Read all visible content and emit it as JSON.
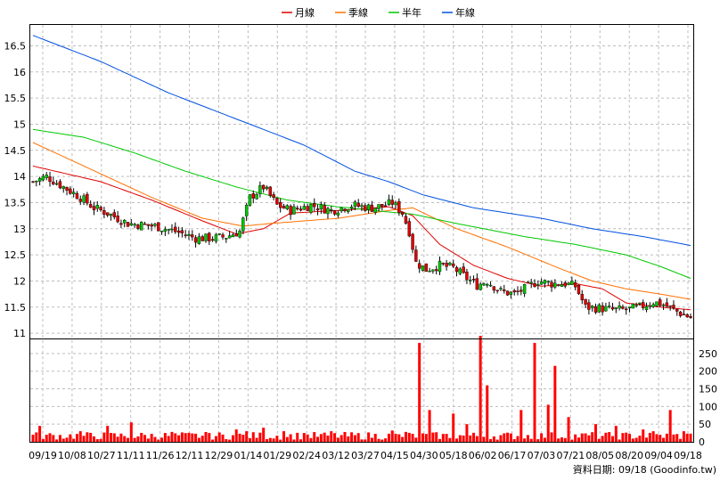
{
  "chart_data": {
    "type": "line",
    "legend": {
      "placement": "top",
      "entries": [
        {
          "name": "月線",
          "color": "#e00000"
        },
        {
          "name": "季線",
          "color": "#ff7000"
        },
        {
          "name": "半年",
          "color": "#00c800"
        },
        {
          "name": "年線",
          "color": "#0050e0"
        }
      ]
    },
    "price_axis": {
      "ticks": [
        "11",
        "11.5",
        "12",
        "12.5",
        "13",
        "13.5",
        "14",
        "14.5",
        "15",
        "15.5",
        "16",
        "16.5"
      ],
      "ylim": [
        10.9,
        16.9
      ]
    },
    "volume_axis": {
      "ticks": [
        "0",
        "50",
        "100",
        "150",
        "200",
        "250"
      ],
      "ylim": [
        0,
        290
      ]
    },
    "x_ticks": [
      "09/19",
      "10/08",
      "10/27",
      "11/11",
      "11/26",
      "12/11",
      "12/29",
      "01/14",
      "01/29",
      "02/24",
      "03/12",
      "03/27",
      "04/15",
      "04/30",
      "05/18",
      "06/02",
      "06/17",
      "07/03",
      "07/21",
      "08/05",
      "08/20",
      "09/04",
      "09/18"
    ],
    "grid": true,
    "candle_up_color": "#00c800",
    "candle_down_color": "#e00000",
    "volume_color": "#ff0000",
    "close_anchors": [
      [
        0,
        13.9
      ],
      [
        4,
        14.0
      ],
      [
        9,
        13.8
      ],
      [
        14,
        13.6
      ],
      [
        18,
        13.4
      ],
      [
        22,
        13.3
      ],
      [
        28,
        13.1
      ],
      [
        36,
        13.05
      ],
      [
        42,
        12.95
      ],
      [
        48,
        12.82
      ],
      [
        53,
        12.82
      ],
      [
        57,
        12.85
      ],
      [
        61,
        12.95
      ],
      [
        64,
        13.6
      ],
      [
        68,
        13.8
      ],
      [
        72,
        13.45
      ],
      [
        76,
        13.35
      ],
      [
        82,
        13.45
      ],
      [
        88,
        13.35
      ],
      [
        94,
        13.45
      ],
      [
        100,
        13.4
      ],
      [
        104,
        13.45
      ],
      [
        106,
        13.5
      ],
      [
        109,
        13.3
      ],
      [
        111,
        12.95
      ],
      [
        113,
        12.35
      ],
      [
        116,
        12.22
      ],
      [
        120,
        12.3
      ],
      [
        124,
        12.25
      ],
      [
        128,
        12.05
      ],
      [
        131,
        11.92
      ],
      [
        134,
        12.0
      ],
      [
        138,
        11.8
      ],
      [
        142,
        11.75
      ],
      [
        145,
        11.85
      ],
      [
        149,
        12.0
      ],
      [
        153,
        11.95
      ],
      [
        157,
        11.95
      ],
      [
        160,
        11.9
      ],
      [
        163,
        11.5
      ],
      [
        167,
        11.48
      ],
      [
        171,
        11.45
      ],
      [
        175,
        11.45
      ],
      [
        179,
        11.5
      ],
      [
        183,
        11.6
      ],
      [
        186,
        11.55
      ],
      [
        189,
        11.45
      ],
      [
        192,
        11.35
      ],
      [
        194,
        11.3
      ]
    ],
    "ma_anchors": {
      "月線": [
        [
          0,
          14.2
        ],
        [
          20,
          13.9
        ],
        [
          35,
          13.55
        ],
        [
          50,
          13.15
        ],
        [
          60,
          12.9
        ],
        [
          68,
          13.0
        ],
        [
          76,
          13.3
        ],
        [
          90,
          13.35
        ],
        [
          105,
          13.42
        ],
        [
          112,
          13.25
        ],
        [
          120,
          12.7
        ],
        [
          130,
          12.3
        ],
        [
          140,
          12.05
        ],
        [
          150,
          11.9
        ],
        [
          160,
          11.95
        ],
        [
          168,
          11.85
        ],
        [
          175,
          11.58
        ],
        [
          185,
          11.5
        ],
        [
          194,
          11.45
        ]
      ],
      "季線": [
        [
          0,
          14.65
        ],
        [
          20,
          14.05
        ],
        [
          35,
          13.6
        ],
        [
          50,
          13.2
        ],
        [
          62,
          13.05
        ],
        [
          70,
          13.1
        ],
        [
          90,
          13.2
        ],
        [
          105,
          13.35
        ],
        [
          112,
          13.4
        ],
        [
          125,
          13.0
        ],
        [
          140,
          12.65
        ],
        [
          155,
          12.25
        ],
        [
          165,
          12.0
        ],
        [
          175,
          11.85
        ],
        [
          185,
          11.75
        ],
        [
          194,
          11.65
        ]
      ],
      "半年": [
        [
          0,
          14.9
        ],
        [
          15,
          14.75
        ],
        [
          30,
          14.45
        ],
        [
          45,
          14.1
        ],
        [
          60,
          13.8
        ],
        [
          75,
          13.55
        ],
        [
          90,
          13.42
        ],
        [
          105,
          13.32
        ],
        [
          112,
          13.28
        ],
        [
          125,
          13.1
        ],
        [
          145,
          12.85
        ],
        [
          160,
          12.7
        ],
        [
          175,
          12.5
        ],
        [
          185,
          12.28
        ],
        [
          194,
          12.05
        ]
      ],
      "年線": [
        [
          0,
          16.7
        ],
        [
          20,
          16.2
        ],
        [
          40,
          15.6
        ],
        [
          60,
          15.1
        ],
        [
          80,
          14.6
        ],
        [
          95,
          14.1
        ],
        [
          105,
          13.9
        ],
        [
          115,
          13.65
        ],
        [
          130,
          13.4
        ],
        [
          150,
          13.2
        ],
        [
          165,
          13.0
        ],
        [
          180,
          12.85
        ],
        [
          194,
          12.68
        ]
      ]
    },
    "volume_spikes": [
      [
        2,
        45
      ],
      [
        14,
        30
      ],
      [
        22,
        45
      ],
      [
        29,
        55
      ],
      [
        41,
        28
      ],
      [
        52,
        25
      ],
      [
        60,
        35
      ],
      [
        63,
        30
      ],
      [
        68,
        40
      ],
      [
        74,
        30
      ],
      [
        80,
        25
      ],
      [
        88,
        30
      ],
      [
        106,
        32
      ],
      [
        110,
        28
      ],
      [
        114,
        280
      ],
      [
        117,
        90
      ],
      [
        124,
        80
      ],
      [
        128,
        50
      ],
      [
        132,
        300
      ],
      [
        134,
        160
      ],
      [
        144,
        90
      ],
      [
        148,
        280
      ],
      [
        152,
        105
      ],
      [
        154,
        215
      ],
      [
        158,
        70
      ],
      [
        166,
        50
      ],
      [
        172,
        45
      ],
      [
        180,
        35
      ],
      [
        183,
        30
      ],
      [
        188,
        90
      ],
      [
        192,
        30
      ]
    ]
  },
  "footer": {
    "source_label": "資料日期: 09/18 (Goodinfo.tw)"
  }
}
